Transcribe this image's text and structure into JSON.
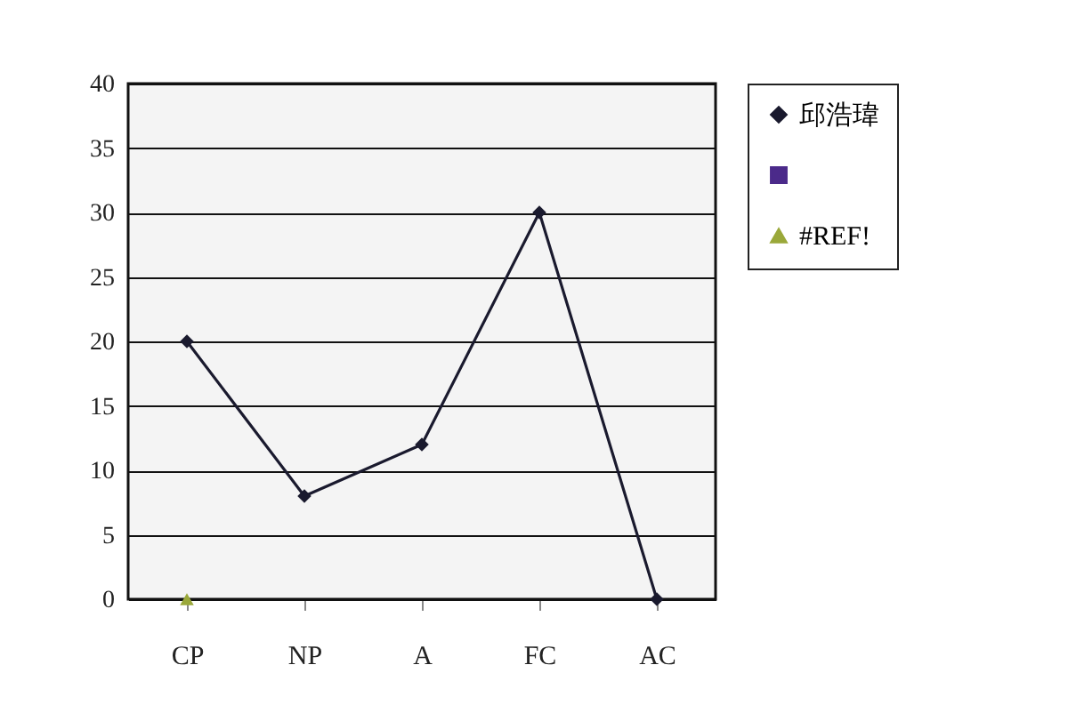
{
  "chart_data": {
    "type": "line",
    "categories": [
      "CP",
      "NP",
      "A",
      "FC",
      "AC"
    ],
    "series": [
      {
        "name": "邱浩瑋",
        "color": "#1a1a2e",
        "marker": "diamond",
        "values": [
          20,
          8,
          12,
          30,
          0
        ]
      },
      {
        "color": "#4b2a8a",
        "marker": "square",
        "values": [
          null,
          null,
          null,
          null,
          null
        ]
      },
      {
        "name": "#REF!",
        "color": "#9aa83a",
        "marker": "triangle",
        "values": [
          0,
          null,
          null,
          null,
          null
        ]
      }
    ],
    "ylim": [
      0,
      40
    ],
    "yticks": [
      0,
      5,
      10,
      15,
      20,
      25,
      30,
      35,
      40
    ],
    "grid": "y",
    "legend": "right"
  }
}
